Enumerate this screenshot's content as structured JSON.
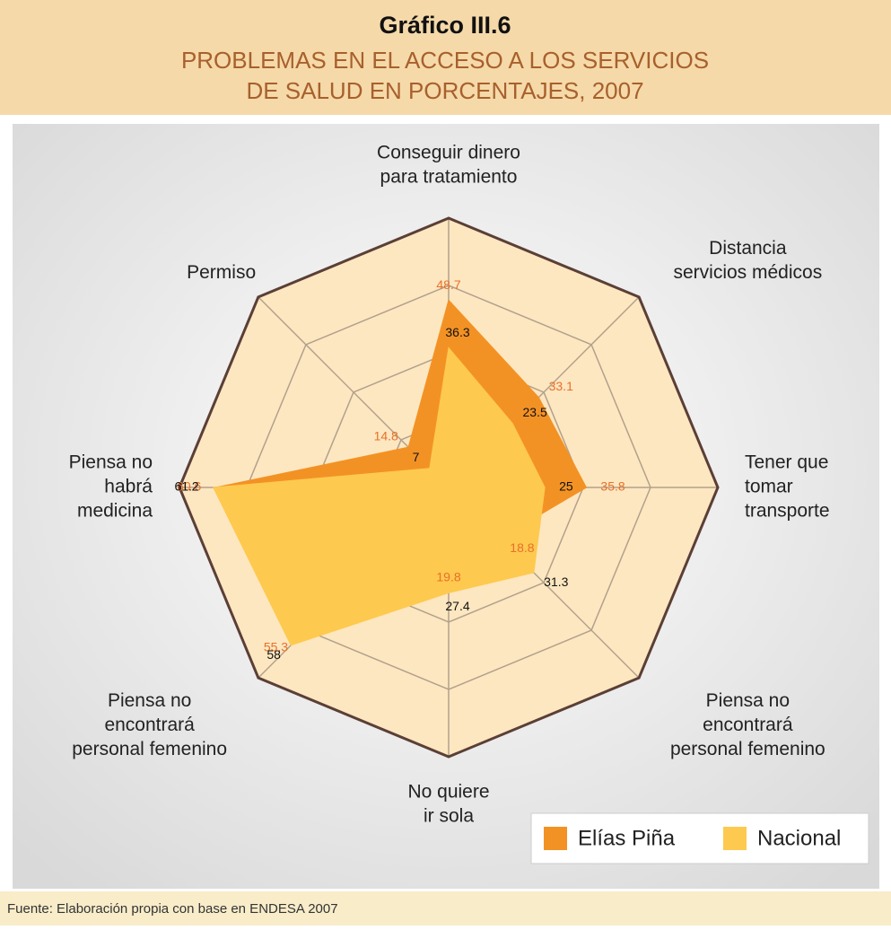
{
  "chart_data": {
    "type": "radar",
    "title": "Gráfico III.6",
    "subtitle": [
      "PROBLEMAS EN EL ACCESO A LOS SERVICIOS",
      "DE SALUD EN PORCENTAJES, 2007"
    ],
    "source": "Fuente: Elaboración propia con base  en ENDESA  2007",
    "categories": [
      [
        "Conseguir dinero",
        "para tratamiento"
      ],
      [
        "Distancia",
        "servicios médicos"
      ],
      [
        "Tener que",
        "tomar",
        "transporte"
      ],
      [
        "Piensa no",
        "encontrará",
        "personal femenino"
      ],
      [
        "No quiere",
        "ir sola"
      ],
      [
        "Piensa no",
        "encontrará",
        "personal femenino"
      ],
      [
        "Piensa no",
        "habrá",
        "medicina"
      ],
      [
        "Permiso"
      ]
    ],
    "series": [
      {
        "name": "Elías Piña",
        "color": "#f39224",
        "label_color": "#e8702a",
        "values": [
          48.7,
          33.1,
          35.8,
          18.8,
          19.8,
          55.3,
          60.6,
          14.8
        ]
      },
      {
        "name": "Nacional",
        "color": "#fec94f",
        "label_color": "#111111",
        "values": [
          36.3,
          23.5,
          25,
          31.3,
          27.4,
          58,
          61.2,
          7
        ]
      }
    ],
    "rlim": [
      0,
      70
    ],
    "rticks": [
      17.5,
      35,
      52.5,
      70
    ],
    "grid": true,
    "legend": "bottom-right"
  }
}
